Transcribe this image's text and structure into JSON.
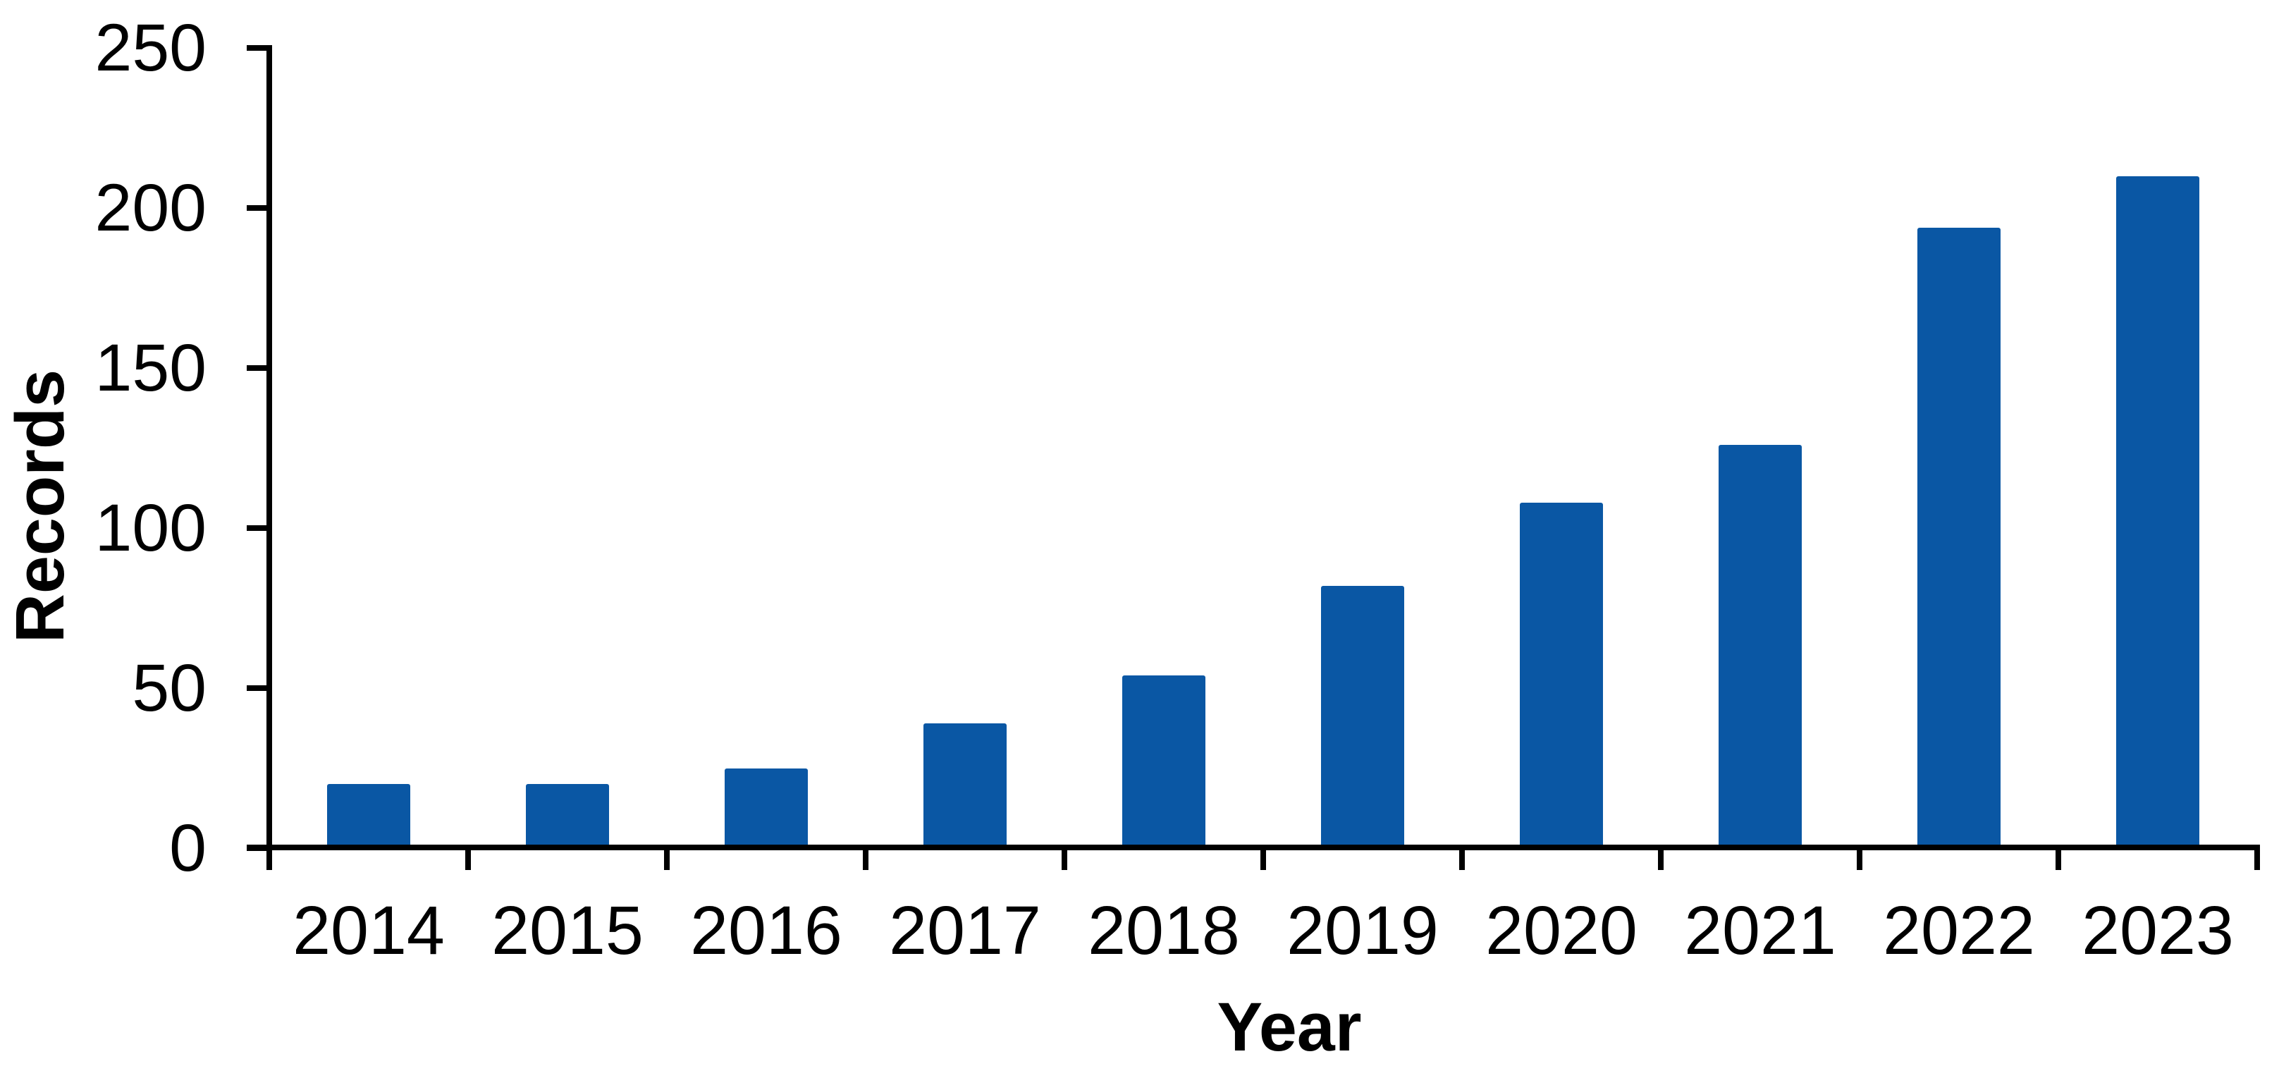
{
  "chart_data": {
    "type": "bar",
    "title": "",
    "categories": [
      "2014",
      "2015",
      "2016",
      "2017",
      "2018",
      "2019",
      "2020",
      "2021",
      "2022",
      "2023"
    ],
    "values": [
      20,
      20,
      25,
      39,
      54,
      82,
      108,
      126,
      194,
      210
    ],
    "xlabel": "Year",
    "ylabel": "Records",
    "ylim": [
      0,
      250
    ],
    "yticks": [
      0,
      50,
      100,
      150,
      200,
      250
    ],
    "grid": "off",
    "legend": "none",
    "bar_color": "#0A57A4",
    "axis_color": "#000000",
    "background_color": "#FFFFFF"
  }
}
